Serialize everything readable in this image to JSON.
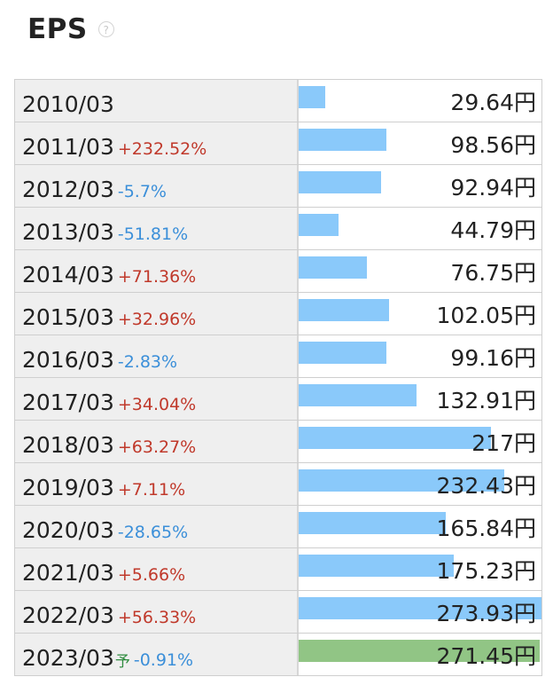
{
  "header": {
    "title": "EPS",
    "help_icon": "question-circle-icon"
  },
  "colors": {
    "actual_bar": "#8ac9fa",
    "forecast_bar": "#91c585",
    "increase": "#c0392b",
    "decrease": "#3b8fd9",
    "forecast_mark": "#2e8b3e"
  },
  "chart_data": {
    "type": "bar",
    "unit": "円",
    "forecast_label": "予",
    "categories": [
      "2010/03",
      "2011/03",
      "2012/03",
      "2013/03",
      "2014/03",
      "2015/03",
      "2016/03",
      "2017/03",
      "2018/03",
      "2019/03",
      "2020/03",
      "2021/03",
      "2022/03",
      "2023/03"
    ],
    "values": [
      29.64,
      98.56,
      92.94,
      44.79,
      76.75,
      102.05,
      99.16,
      132.91,
      217,
      232.43,
      165.84,
      175.23,
      273.93,
      271.45
    ],
    "value_labels": [
      "29.64円",
      "98.56円",
      "92.94円",
      "44.79円",
      "76.75円",
      "102.05円",
      "99.16円",
      "132.91円",
      "217円",
      "232.43円",
      "165.84円",
      "175.23円",
      "273.93円",
      "271.45円"
    ],
    "changes": [
      "",
      "+232.52%",
      "-5.7%",
      "-51.81%",
      "+71.36%",
      "+32.96%",
      "-2.83%",
      "+34.04%",
      "+63.27%",
      "+7.11%",
      "-28.65%",
      "+5.66%",
      "+56.33%",
      "-0.91%"
    ],
    "forecast": [
      false,
      false,
      false,
      false,
      false,
      false,
      false,
      false,
      false,
      false,
      false,
      false,
      false,
      true
    ],
    "xlim": [
      0,
      273.93
    ]
  }
}
